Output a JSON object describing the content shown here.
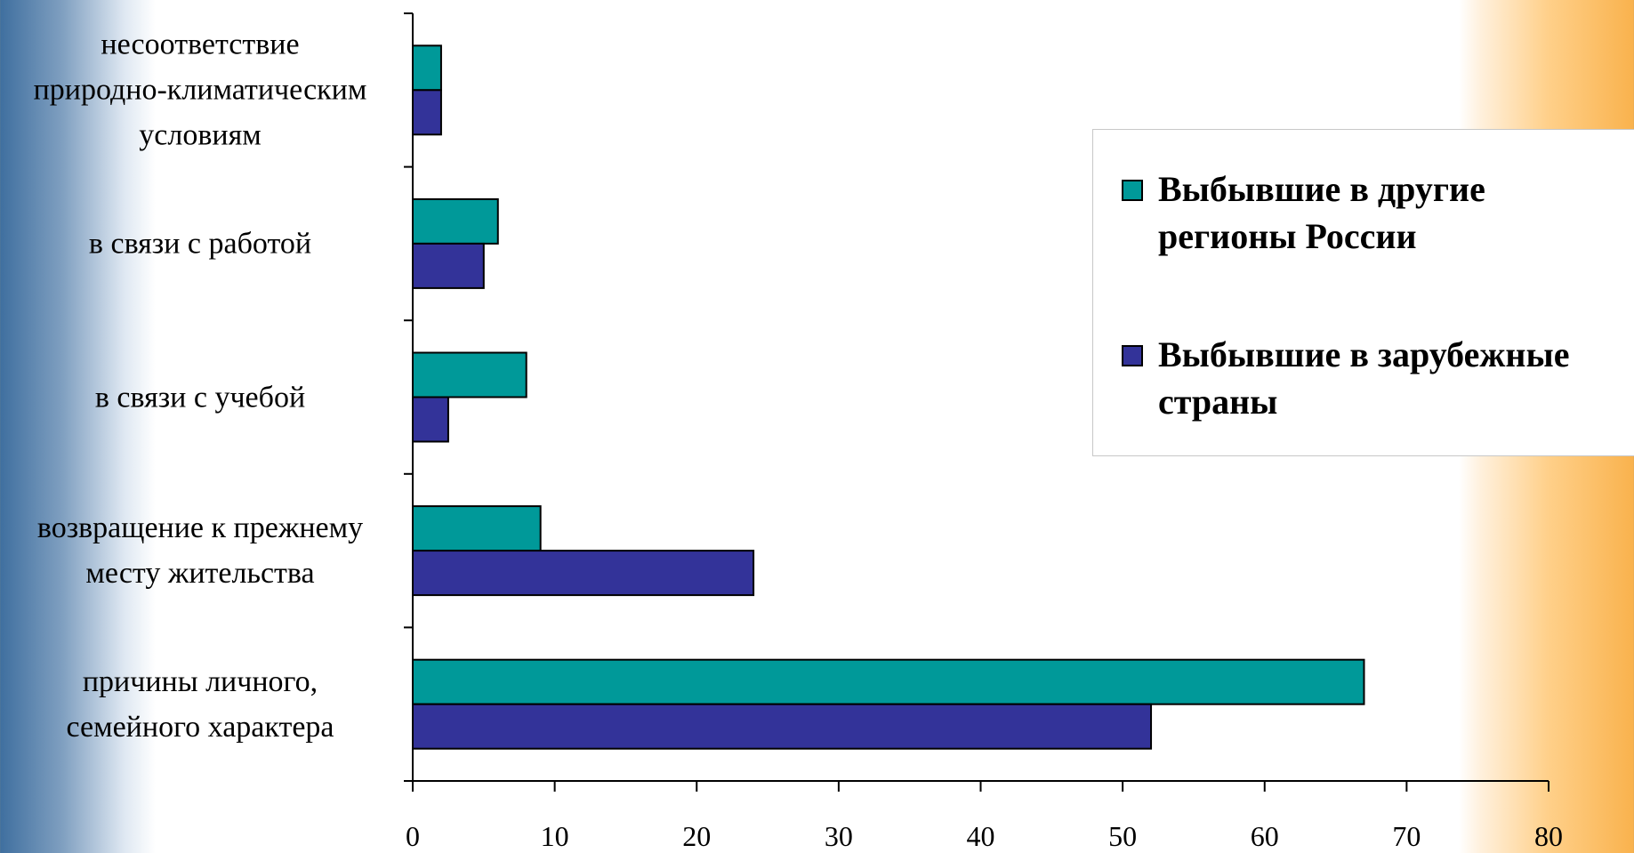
{
  "chart_data": {
    "type": "bar",
    "orientation": "horizontal",
    "categories": [
      "несоответствие природно-климатическим условиям",
      "в связи с работой",
      "в связи с учебой",
      "возвращение к прежнему месту жительства",
      "причины личного, семейного характера"
    ],
    "category_lines": [
      [
        "несоответствие",
        "природно-климатическим",
        "условиям"
      ],
      [
        "в связи с работой"
      ],
      [
        "в связи с учебой"
      ],
      [
        "возвращение к прежнему",
        "месту жительства"
      ],
      [
        "причины личного,",
        "семейного характера"
      ]
    ],
    "series": [
      {
        "name": "Выбывшие в другие регионы России",
        "legend_lines": [
          "Выбывшие в другие",
          "регионы России"
        ],
        "color": "#009999",
        "values": [
          2,
          6,
          8,
          9,
          67
        ]
      },
      {
        "name": "Выбывшие в зарубежные страны",
        "legend_lines": [
          "Выбывшие в зарубежные",
          "страны"
        ],
        "color": "#333399",
        "values": [
          2,
          5,
          2.5,
          24,
          52
        ]
      }
    ],
    "xlim": [
      0,
      80
    ],
    "xticks": [
      "0",
      "10",
      "20",
      "30",
      "40",
      "50",
      "60",
      "70",
      "80"
    ],
    "xlabel": "",
    "ylabel": "",
    "grid": false,
    "legend_position": "right"
  }
}
